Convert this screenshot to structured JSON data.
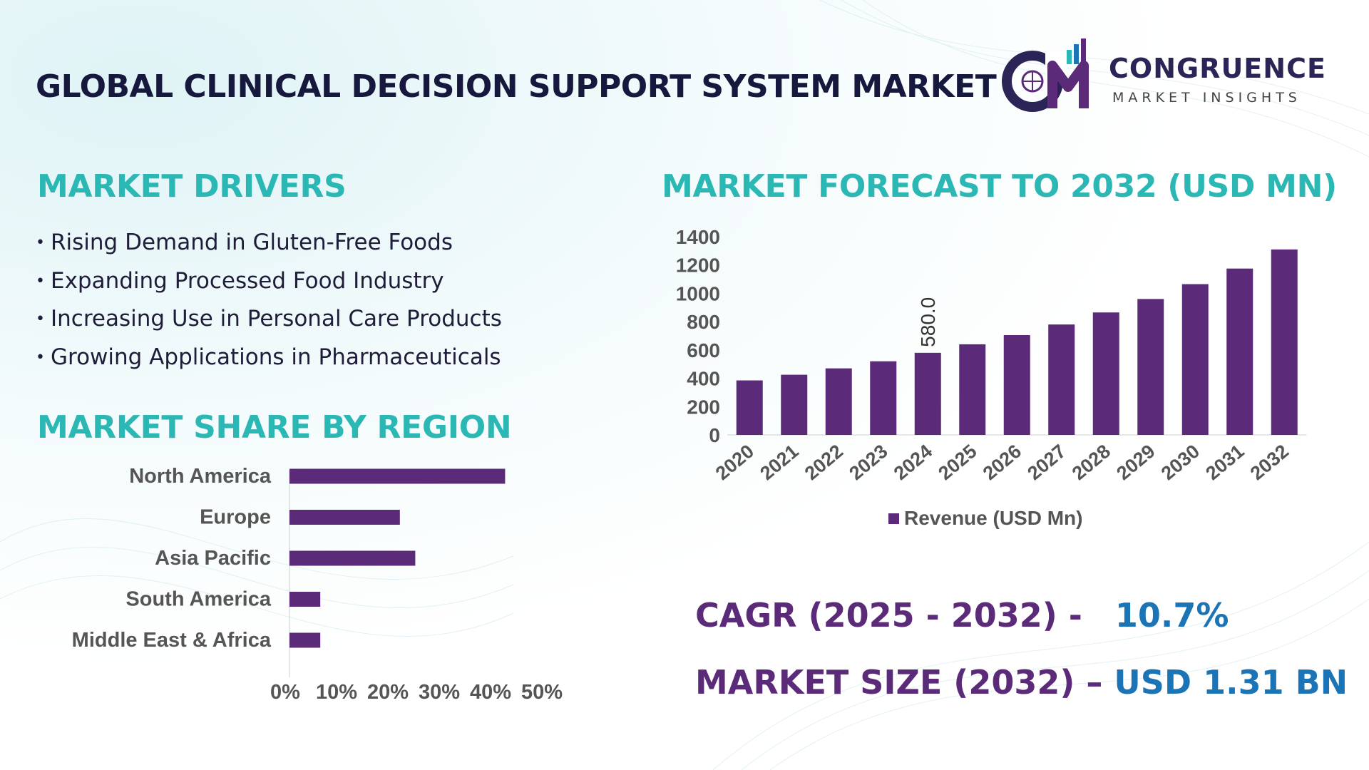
{
  "header": {
    "title": "GLOBAL CLINICAL DECISION SUPPORT SYSTEM MARKET",
    "logo_mark": "CM",
    "logo_brand": "CONGRUENCE",
    "logo_sub": "MARKET INSIGHTS"
  },
  "drivers": {
    "title": "MARKET DRIVERS",
    "items": [
      "Rising Demand in Gluten-Free Foods",
      "Expanding Processed Food Industry",
      "Increasing Use in Personal Care Products",
      "Growing Applications in Pharmaceuticals"
    ]
  },
  "region": {
    "title": "MARKET SHARE BY REGION"
  },
  "forecast": {
    "title": "MARKET FORECAST TO 2032 (USD MN)"
  },
  "stats": {
    "cagr_label": "CAGR (2025 - 2032) -",
    "cagr_value": "10.7%",
    "size_label": "MARKET SIZE (2032) –",
    "size_value": "USD 1.31 BN"
  },
  "colors": {
    "bar": "#5b2a78",
    "accent_teal": "#2bb7b3",
    "accent_blue": "#1a74b5",
    "title_dark": "#16183d"
  },
  "chart_data": [
    {
      "type": "bar",
      "orientation": "horizontal",
      "categories": [
        "North America",
        "Europe",
        "Asia Pacific",
        "South America",
        "Middle East & Africa"
      ],
      "values": [
        42,
        21.5,
        24.5,
        6,
        6
      ],
      "xticks": [
        "0%",
        "10%",
        "20%",
        "30%",
        "40%",
        "50%"
      ],
      "xlim": [
        0,
        50
      ],
      "grid": false
    },
    {
      "type": "bar",
      "categories": [
        "2020",
        "2021",
        "2022",
        "2023",
        "2024",
        "2025",
        "2026",
        "2027",
        "2028",
        "2029",
        "2030",
        "2031",
        "2032"
      ],
      "series": [
        {
          "name": "Revenue (USD Mn)",
          "values": [
            385,
            425,
            470,
            520,
            580.0,
            640,
            705,
            780,
            865,
            960,
            1065,
            1175,
            1310
          ]
        }
      ],
      "data_labels": [
        {
          "category": "2024",
          "label": "580.0"
        }
      ],
      "yticks": [
        "0",
        "200",
        "400",
        "600",
        "800",
        "1000",
        "1200",
        "1400"
      ],
      "ylim": [
        0,
        1400
      ],
      "legend": "bottom",
      "grid": false
    }
  ]
}
